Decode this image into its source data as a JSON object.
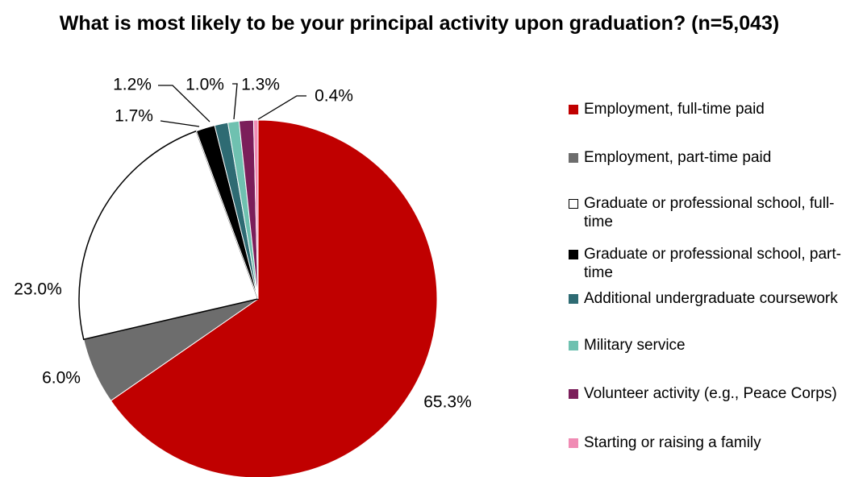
{
  "chart_data": {
    "type": "pie",
    "title": "What is most likely to be your principal activity upon graduation? (n=5,043)",
    "slices": [
      {
        "label": "Employment, full-time paid",
        "value": 65.3,
        "display": "65.3%",
        "color": "#C00000"
      },
      {
        "label": "Employment, part-time paid",
        "value": 6.0,
        "display": "6.0%",
        "color": "#6D6D6D"
      },
      {
        "label": "Graduate or professional school, full-time",
        "value": 23.0,
        "display": "23.0%",
        "color": "#FFFFFF"
      },
      {
        "label": "Graduate or professional school, part-time",
        "value": 1.7,
        "display": "1.7%",
        "color": "#000000"
      },
      {
        "label": "Additional undergraduate coursework",
        "value": 1.2,
        "display": "1.2%",
        "color": "#2E6B73"
      },
      {
        "label": "Military service",
        "value": 1.0,
        "display": "1.0%",
        "color": "#6FC1B0"
      },
      {
        "label": "Volunteer activity (e.g., Peace Corps)",
        "value": 1.3,
        "display": "1.3%",
        "color": "#7B1E5A"
      },
      {
        "label": "Starting or raising a family",
        "value": 0.4,
        "display": "0.4%",
        "color": "#F08BB4"
      }
    ],
    "legend_position": "right",
    "start_angle": "12 o'clock",
    "direction": "clockwise"
  }
}
